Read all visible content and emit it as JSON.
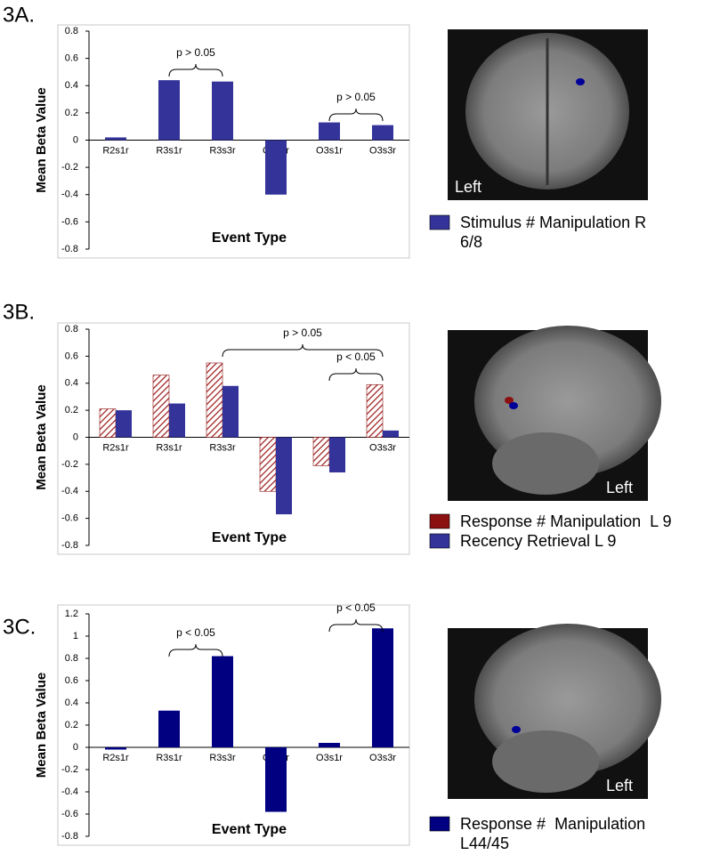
{
  "chart_data": [
    {
      "type": "bar",
      "panel_label": "3A.",
      "ylabel": "Mean Beta Value",
      "xlabel": "Event Type",
      "categories": [
        "R2s1r",
        "R3s1r",
        "R3s3r",
        "O2s1r",
        "O3s1r",
        "O3s3r"
      ],
      "series": [
        {
          "name": "Stimulus # Manipulation R 6/8",
          "color": "#333399",
          "values": [
            0.02,
            0.44,
            0.43,
            -0.4,
            0.13,
            0.11
          ]
        }
      ],
      "ylim": [
        -0.8,
        0.8
      ],
      "yticks": [
        -0.8,
        -0.6,
        -0.4,
        -0.2,
        0,
        0.2,
        0.4,
        0.6,
        0.8
      ],
      "annotations": [
        "p > 0.05",
        "p > 0.05"
      ],
      "image_label": "Left"
    },
    {
      "type": "bar",
      "panel_label": "3B.",
      "ylabel": "Mean Beta Value",
      "xlabel": "Event Type",
      "categories": [
        "R2s1r",
        "R3s1r",
        "R3s3r",
        "O2s1r",
        "O3s1r",
        "O3s3r"
      ],
      "series": [
        {
          "name": "Response # Manipulation  L 9",
          "color": "#8b1010",
          "hatch": true,
          "values": [
            0.21,
            0.46,
            0.55,
            -0.4,
            -0.21,
            0.39
          ]
        },
        {
          "name": "Recency Retrieval L 9",
          "color": "#333399",
          "values": [
            0.2,
            0.25,
            0.38,
            -0.57,
            -0.26,
            0.05
          ]
        }
      ],
      "ylim": [
        -0.8,
        0.8
      ],
      "yticks": [
        -0.8,
        -0.6,
        -0.4,
        -0.2,
        0,
        0.2,
        0.4,
        0.6,
        0.8
      ],
      "annotations": [
        "p > 0.05",
        "p < 0.05"
      ],
      "image_label": "Left"
    },
    {
      "type": "bar",
      "panel_label": "3C.",
      "ylabel": "Mean Beta Value",
      "xlabel": "Event Type",
      "categories": [
        "R2s1r",
        "R3s1r",
        "R3s3r",
        "O2s1r",
        "O3s1r",
        "O3s3r"
      ],
      "series": [
        {
          "name": "Response #  Manipulation L44/45",
          "color": "#000080",
          "values": [
            -0.02,
            0.33,
            0.82,
            -0.58,
            0.04,
            1.07
          ]
        }
      ],
      "ylim": [
        -0.8,
        1.2
      ],
      "yticks": [
        -0.8,
        -0.6,
        -0.4,
        -0.2,
        0,
        0.2,
        0.4,
        0.6,
        0.8,
        1,
        1.2
      ],
      "annotations": [
        "p < 0.05",
        "p < 0.05"
      ],
      "image_label": "Left"
    }
  ]
}
